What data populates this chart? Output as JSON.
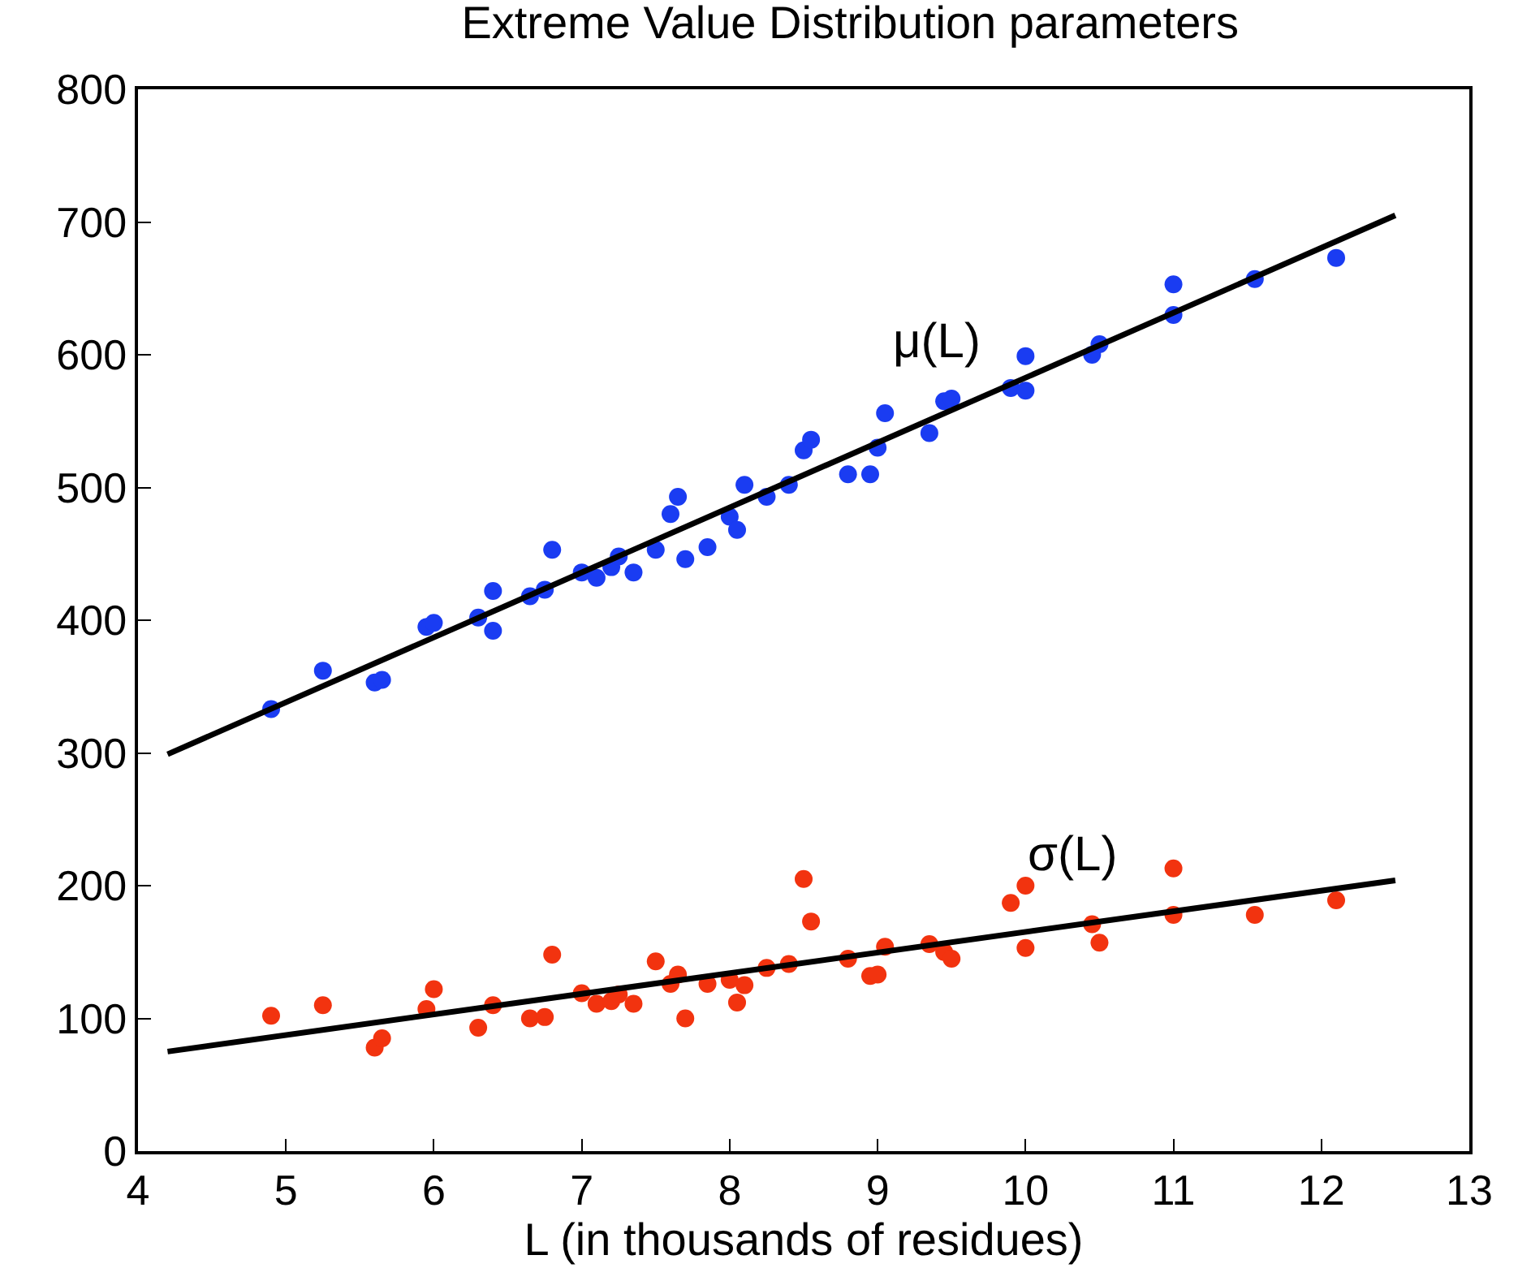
{
  "chart_data": {
    "type": "scatter",
    "title": "Extreme Value Distribution parameters",
    "xlabel": "L (in thousands of residues)",
    "xlim": [
      4,
      13
    ],
    "xticks": [
      4,
      5,
      6,
      7,
      8,
      9,
      10,
      11,
      12,
      13
    ],
    "ylim": [
      0,
      800
    ],
    "yticks": [
      0,
      100,
      200,
      300,
      400,
      500,
      600,
      700,
      800
    ],
    "legend": false,
    "series": [
      {
        "color": "#1a3cf2",
        "marker": "circle",
        "x": [
          4.9,
          5.25,
          5.6,
          5.65,
          5.95,
          6.0,
          6.3,
          6.4,
          6.4,
          6.65,
          6.75,
          6.8,
          7.0,
          7.1,
          7.2,
          7.25,
          7.35,
          7.5,
          7.6,
          7.65,
          7.7,
          7.85,
          8.0,
          8.05,
          8.1,
          8.25,
          8.4,
          8.5,
          8.55,
          8.8,
          8.95,
          9.0,
          9.05,
          9.35,
          9.45,
          9.5,
          9.9,
          10.0,
          10.0,
          10.45,
          10.5,
          11.0,
          11.0,
          11.55,
          12.1
        ],
        "values": [
          333,
          362,
          353,
          355,
          395,
          398,
          402,
          422,
          392,
          418,
          423,
          453,
          436,
          432,
          440,
          448,
          436,
          453,
          480,
          493,
          446,
          455,
          478,
          468,
          502,
          493,
          502,
          528,
          536,
          510,
          510,
          530,
          556,
          541,
          565,
          567,
          575,
          573,
          599,
          600,
          608,
          653,
          630,
          657,
          673
        ]
      },
      {
        "color": "#f2330f",
        "marker": "circle",
        "x": [
          4.9,
          5.25,
          5.6,
          5.65,
          5.95,
          6.0,
          6.3,
          6.4,
          6.65,
          6.75,
          6.8,
          7.0,
          7.1,
          7.2,
          7.25,
          7.35,
          7.5,
          7.6,
          7.65,
          7.7,
          7.85,
          8.0,
          8.05,
          8.1,
          8.25,
          8.4,
          8.5,
          8.55,
          8.8,
          8.95,
          9.0,
          9.05,
          9.35,
          9.45,
          9.5,
          9.9,
          10.0,
          10.0,
          10.45,
          10.5,
          11.0,
          11.0,
          11.55,
          12.1
        ],
        "values": [
          102,
          110,
          78,
          85,
          107,
          122,
          93,
          110,
          100,
          101,
          148,
          119,
          111,
          113,
          118,
          111,
          143,
          126,
          133,
          100,
          126,
          129,
          112,
          125,
          138,
          141,
          205,
          173,
          145,
          132,
          133,
          154,
          156,
          150,
          145,
          187,
          200,
          153,
          171,
          157,
          213,
          178,
          178,
          189
        ]
      },
      {
        "type": "line",
        "name": "μ(L)",
        "color": "#000000",
        "line_style": "solid",
        "x": [
          4.2,
          12.5
        ],
        "values": [
          299,
          705
        ]
      },
      {
        "type": "line",
        "name": "σ(L)",
        "color": "#000000",
        "line_style": "solid",
        "x": [
          4.2,
          12.5
        ],
        "values": [
          75,
          204
        ]
      }
    ]
  }
}
